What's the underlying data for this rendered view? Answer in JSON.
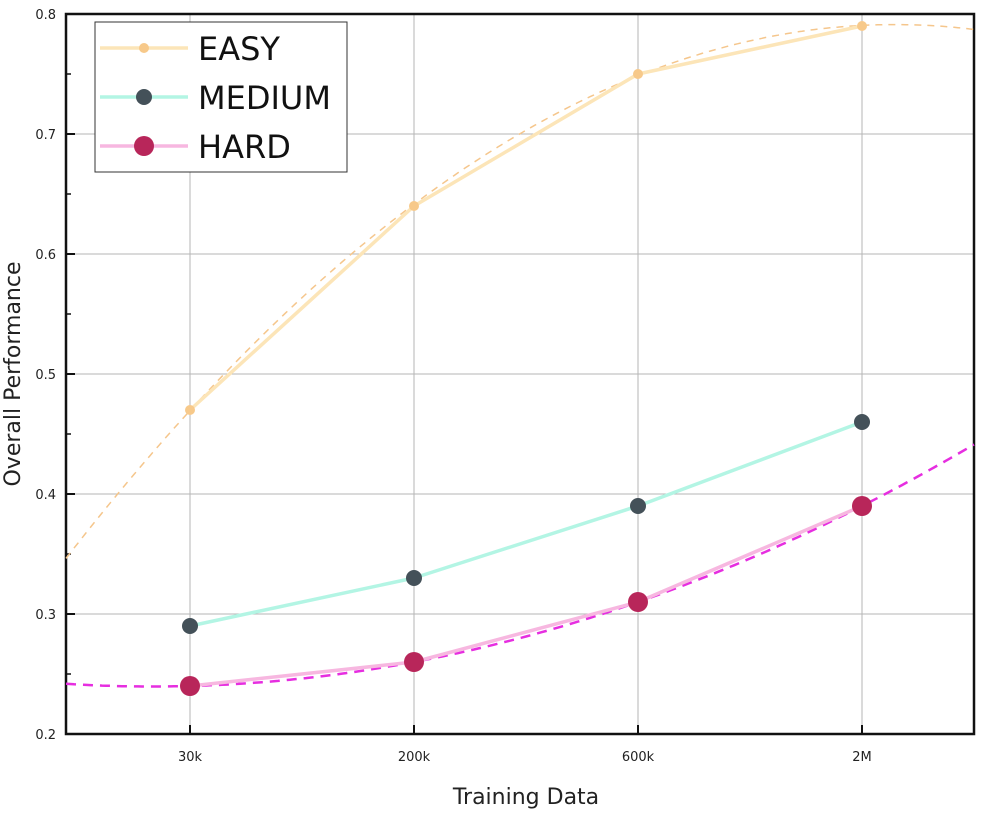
{
  "chart_data": {
    "type": "line",
    "xlabel": "Training Data",
    "ylabel": "Overall Performance",
    "categories": [
      "30k",
      "200k",
      "600k",
      "2M"
    ],
    "ylim": [
      0.2,
      0.8
    ],
    "yticks": [
      "0.2",
      "0.3",
      "0.4",
      "0.5",
      "0.6",
      "0.7",
      "0.8"
    ],
    "grid": true,
    "legend_position": "top-left",
    "series": [
      {
        "name": "EASY",
        "values": [
          0.47,
          0.64,
          0.75,
          0.79
        ],
        "color": "#fce5b8",
        "marker_color": "#f7c98a",
        "trend": true,
        "trend_color": "#f5c68c"
      },
      {
        "name": "MEDIUM",
        "values": [
          0.29,
          0.33,
          0.39,
          0.46
        ],
        "color": "#b3f5e4",
        "marker_color": "#445159",
        "trend": false
      },
      {
        "name": "HARD",
        "values": [
          0.24,
          0.26,
          0.31,
          0.39
        ],
        "color": "#f7b7e0",
        "marker_color": "#b8265a",
        "trend": true,
        "trend_color": "#e62ee0"
      }
    ]
  }
}
